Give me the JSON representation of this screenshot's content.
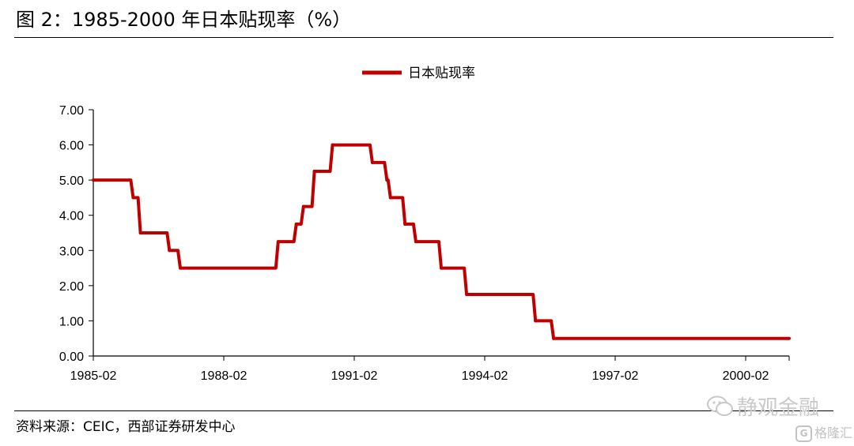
{
  "title": "图 2：1985-2000 年日本贴现率（%）",
  "source": "资料来源：CEIC，西部证券研发中心",
  "watermark": {
    "main": "静观金融",
    "sub": "格隆汇"
  },
  "colors": {
    "series": "#c00000",
    "axis": "#000000",
    "text": "#000000"
  },
  "chart_data": {
    "type": "line",
    "step": true,
    "legend": {
      "position": "top-center"
    },
    "grid": false,
    "xlim": [
      "1985-02",
      "2001-02"
    ],
    "ylim": [
      0,
      7
    ],
    "x_ticks": [
      "1985-02",
      "1988-02",
      "1991-02",
      "1994-02",
      "1997-02",
      "2000-02"
    ],
    "y_ticks": [
      "0.00",
      "1.00",
      "2.00",
      "3.00",
      "4.00",
      "5.00",
      "6.00",
      "7.00"
    ],
    "series": [
      {
        "name": "日本贴现率",
        "color": "#c00000",
        "points": [
          [
            "1985-02",
            5.0
          ],
          [
            "1986-01",
            4.5
          ],
          [
            "1986-03",
            3.5
          ],
          [
            "1986-11",
            3.0
          ],
          [
            "1987-02",
            2.5
          ],
          [
            "1989-05",
            3.25
          ],
          [
            "1989-10",
            3.75
          ],
          [
            "1989-12",
            4.25
          ],
          [
            "1990-03",
            5.25
          ],
          [
            "1990-08",
            6.0
          ],
          [
            "1991-07",
            5.5
          ],
          [
            "1991-11",
            5.0
          ],
          [
            "1991-12",
            4.5
          ],
          [
            "1992-04",
            3.75
          ],
          [
            "1992-07",
            3.25
          ],
          [
            "1993-02",
            2.5
          ],
          [
            "1993-09",
            1.75
          ],
          [
            "1995-04",
            1.0
          ],
          [
            "1995-09",
            0.5
          ],
          [
            "2001-02",
            0.5
          ]
        ]
      }
    ]
  }
}
